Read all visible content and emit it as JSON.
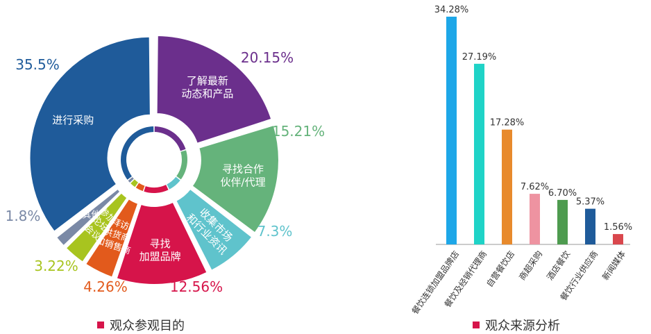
{
  "charts": {
    "donut_caption": "观众参观目的",
    "bar_caption": "观众来源分析",
    "legend_color": "#d6144a"
  },
  "chart_data": [
    {
      "type": "pie",
      "title": "观众参观目的",
      "slices": [
        {
          "label": "了解最新动态和产品",
          "lines": [
            "了解最新",
            "动态和产品"
          ],
          "value": 20.15,
          "value_label": "20.15%",
          "color": "#6b2f8c",
          "label_color": "#ffffff"
        },
        {
          "label": "寻找合作伙伴/代理",
          "lines": [
            "寻找合作",
            "伙伴/代理"
          ],
          "value": 15.21,
          "value_label": "15.21%",
          "color": "#65b37b",
          "label_color": "#ffffff"
        },
        {
          "label": "收集市场和行业资讯",
          "lines": [
            "收集市场",
            "和行业资讯"
          ],
          "value": 7.3,
          "value_label": "7.3%",
          "color": "#5fc3cc",
          "label_color": "#ffffff"
        },
        {
          "label": "寻找加盟品牌",
          "lines": [
            "寻找",
            "加盟品牌"
          ],
          "value": 12.56,
          "value_label": "12.56%",
          "color": "#d6144a",
          "label_color": "#ffffff"
        },
        {
          "label": "拜访供货商和销售商",
          "lines": [
            "拜访",
            "供货商",
            "和销售商"
          ],
          "value": 4.26,
          "value_label": "4.26%",
          "color": "#e25a1c",
          "label_color": "#ffffff"
        },
        {
          "label": "参加论坛会议",
          "lines": [
            "参加",
            "论坛",
            "会议"
          ],
          "value": 3.22,
          "value_label": "3.22%",
          "color": "#a8c41f",
          "label_color": "#ffffff"
        },
        {
          "label": "其他",
          "lines": [
            "其他"
          ],
          "value": 1.8,
          "value_label": "1.8%",
          "color": "#7a89a6",
          "label_color": "#ffffff"
        },
        {
          "label": "进行采购",
          "lines": [
            "进行采购"
          ],
          "value": 35.5,
          "value_label": "35.5%",
          "color": "#1f5b9a",
          "label_color": "#ffffff"
        }
      ],
      "value_label_colors": [
        "#6b2f8c",
        "#65b37b",
        "#5fc3cc",
        "#d6144a",
        "#e25a1c",
        "#a8c41f",
        "#7a89a6",
        "#1f5b9a"
      ]
    },
    {
      "type": "bar",
      "title": "观众来源分析",
      "categories": [
        "餐饮连锁加盟品牌店",
        "餐饮及经销代理商",
        "自营餐饮店",
        "商超采购",
        "酒店餐饮",
        "餐饮行业供应商",
        "新闻媒体"
      ],
      "values": [
        34.28,
        27.19,
        17.28,
        7.62,
        6.7,
        5.37,
        1.56
      ],
      "value_labels": [
        "34.28%",
        "27.19%",
        "17.28%",
        "7.62%",
        "6.70%",
        "5.37%",
        "1.56%"
      ],
      "colors": [
        "#1ea7e8",
        "#1fd3c7",
        "#e88a2c",
        "#ee93a1",
        "#4e9b4f",
        "#1f5b9a",
        "#d9474d"
      ],
      "ylim": [
        0,
        34.28
      ]
    }
  ]
}
